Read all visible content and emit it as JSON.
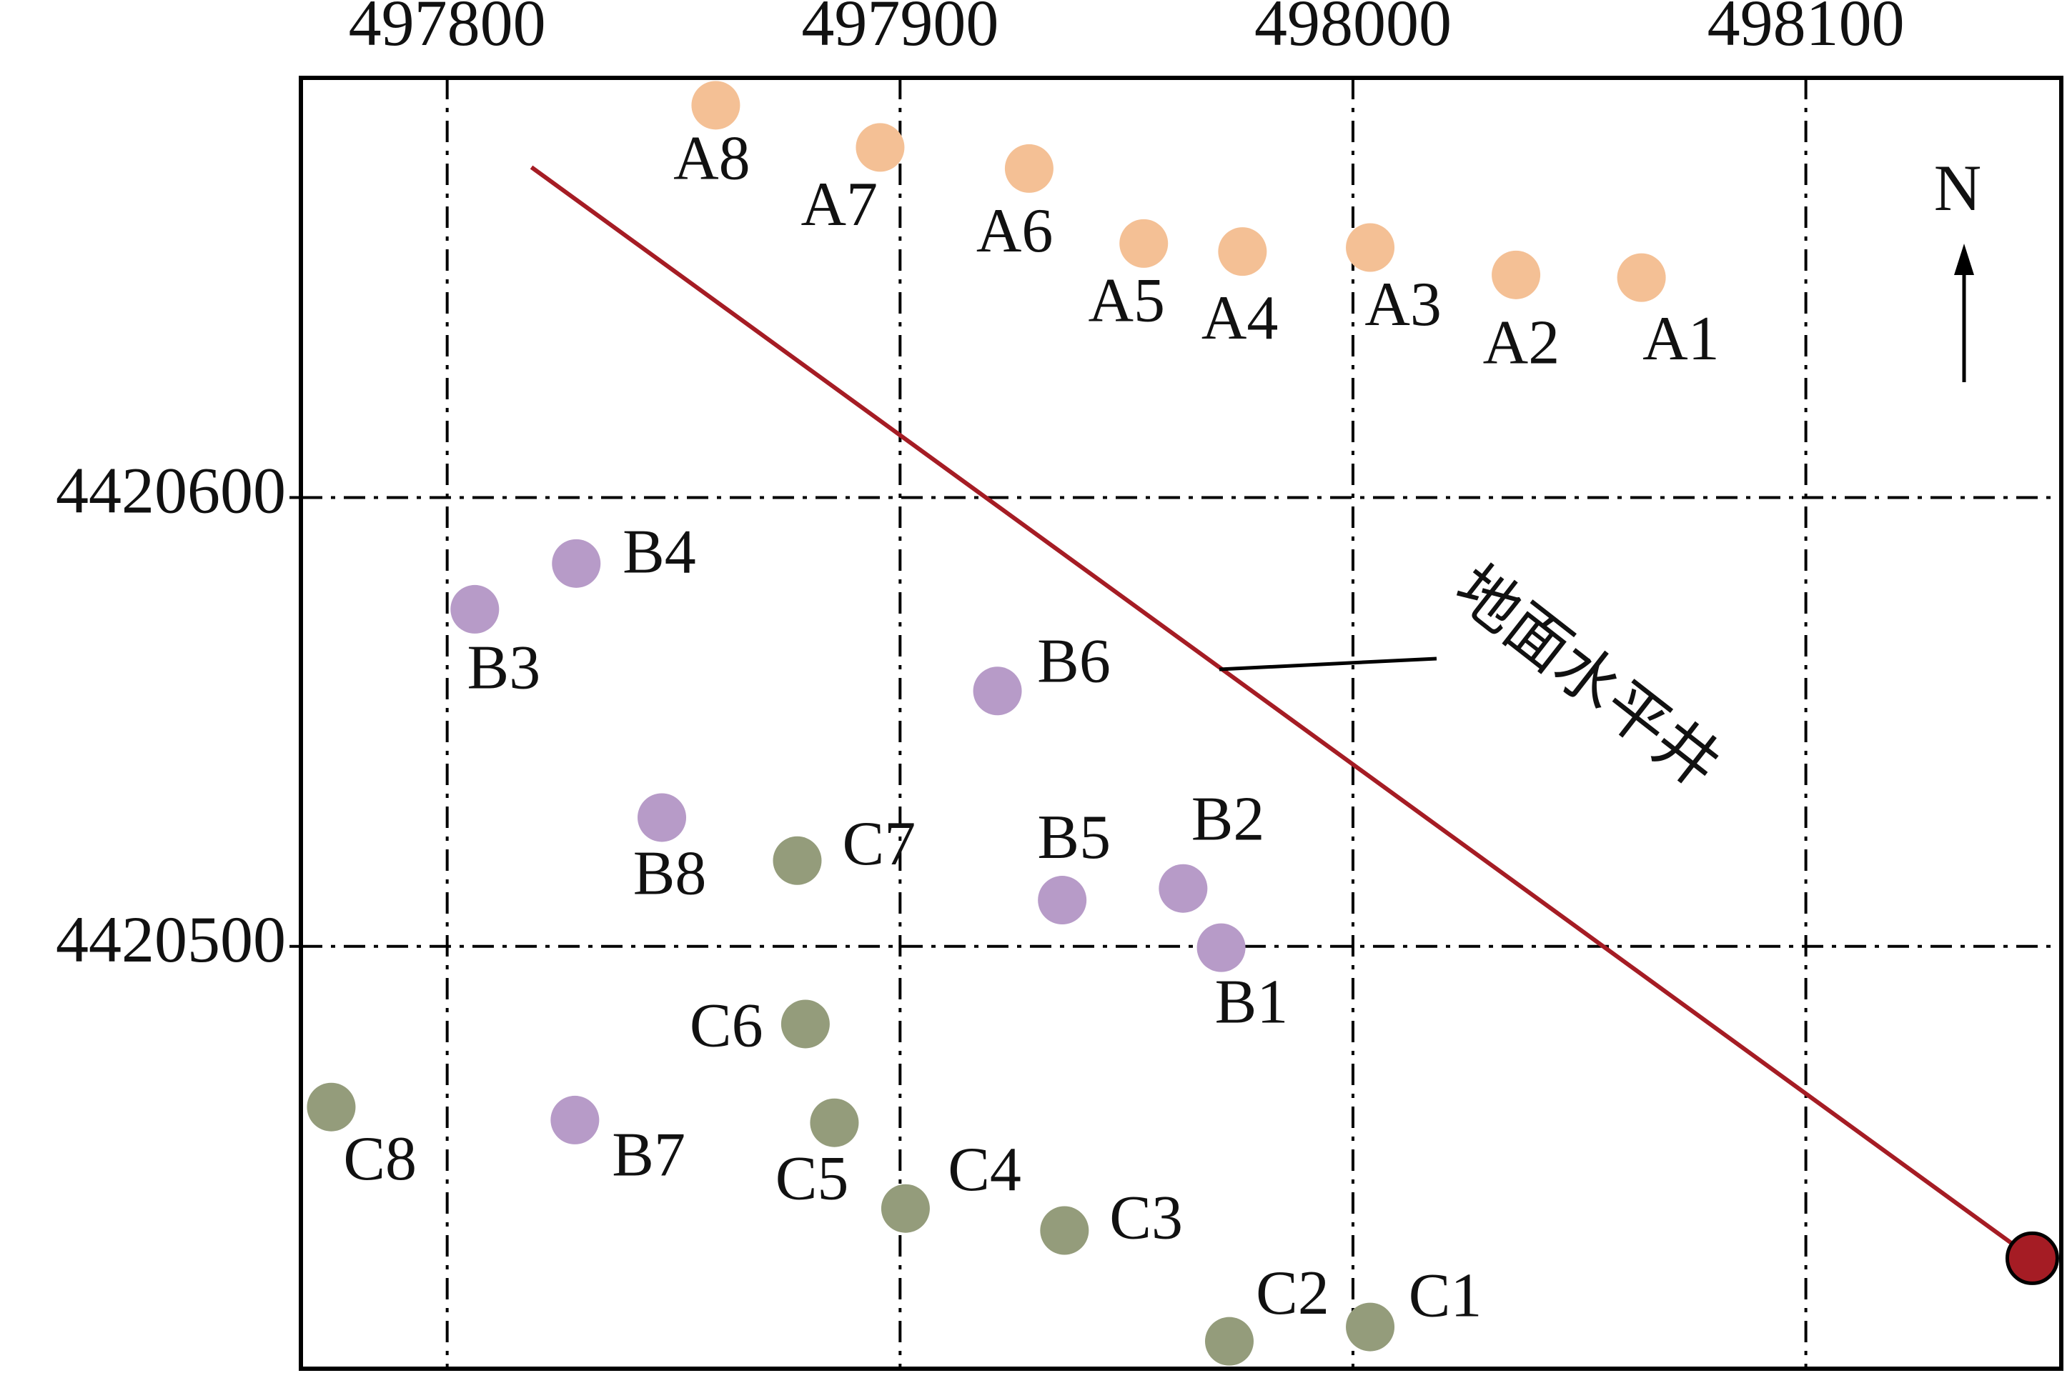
{
  "chart_data": {
    "type": "scatter",
    "xlim": [
      497767.7,
      498156.4
    ],
    "ylim": [
      4420405.9,
      4420693.5
    ],
    "xticks": [
      497800,
      497900,
      498000,
      498100
    ],
    "yticks": [
      4420500,
      4420600
    ],
    "grid": true,
    "series": [
      {
        "color": "#f4c095",
        "labels": [
          "A1",
          "A2",
          "A3",
          "A4",
          "A5",
          "A6",
          "A7",
          "A8"
        ],
        "x": [
          498063.7,
          498036.0,
          498003.8,
          497975.6,
          497953.8,
          497928.5,
          497895.6,
          497859.3
        ],
        "values": [
          4420649.0,
          4420649.6,
          4420655.7,
          4420654.8,
          4420656.6,
          4420673.3,
          4420678.0,
          4420687.4
        ]
      },
      {
        "color": "#b79bc8",
        "labels": [
          "B1",
          "B2",
          "B3",
          "B4",
          "B5",
          "B6",
          "B7",
          "B8"
        ],
        "x": [
          497970.9,
          497962.5,
          497806.1,
          497828.5,
          497935.8,
          497921.5,
          497828.2,
          497847.4
        ],
        "values": [
          4420499.7,
          4420512.9,
          4420575.1,
          4420585.3,
          4420510.3,
          4420556.9,
          4420461.3,
          4420528.7
        ]
      },
      {
        "color": "#949c7b",
        "labels": [
          "C1",
          "C2",
          "C3",
          "C4",
          "C5",
          "C6",
          "C7",
          "C8"
        ],
        "x": [
          498003.8,
          497972.7,
          497936.3,
          497901.2,
          497885.5,
          497879.1,
          497877.3,
          497774.4
        ],
        "values": [
          4420415.2,
          4420412.0,
          4420436.7,
          4420441.6,
          4420460.7,
          4420482.7,
          4420519.1,
          4420464.2
        ]
      }
    ],
    "well": {
      "label": "地面水平井",
      "color": "#a51c24",
      "x": [
        497818.6,
        498150.0
      ],
      "values": [
        4420673.6,
        4420430.5
      ]
    },
    "north_label": "N"
  }
}
